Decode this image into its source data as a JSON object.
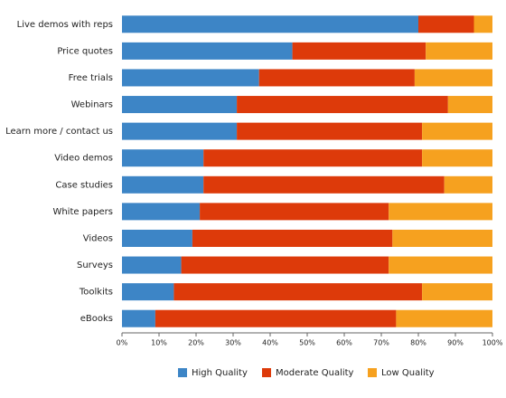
{
  "chart_data": {
    "type": "stacked-barh",
    "categories": [
      "Live demos with reps",
      "Price quotes",
      "Free trials",
      "Webinars",
      "Learn more / contact us",
      "Video demos",
      "Case studies",
      "White papers",
      "Videos",
      "Surveys",
      "Toolkits",
      "eBooks"
    ],
    "series": [
      {
        "name": "High Quality",
        "color": "#3d85c6",
        "values": [
          80,
          46,
          37,
          31,
          31,
          22,
          22,
          21,
          19,
          16,
          14,
          9
        ]
      },
      {
        "name": "Moderate Quality",
        "color": "#dd3a0a",
        "values": [
          15,
          36,
          42,
          57,
          50,
          59,
          65,
          51,
          54,
          56,
          67,
          65
        ]
      },
      {
        "name": "Low Quality",
        "color": "#f6a11f",
        "values": [
          5,
          18,
          21,
          12,
          19,
          19,
          13,
          28,
          27,
          28,
          19,
          26
        ]
      }
    ],
    "xlim": [
      0,
      100
    ],
    "xticks": [
      {
        "value": 0,
        "label": "0%"
      },
      {
        "value": 10,
        "label": "10%"
      },
      {
        "value": 20,
        "label": "20%"
      },
      {
        "value": 30,
        "label": "30%"
      },
      {
        "value": 40,
        "label": "40%"
      },
      {
        "value": 50,
        "label": "50%"
      },
      {
        "value": 60,
        "label": "60%"
      },
      {
        "value": 70,
        "label": "70%"
      },
      {
        "value": 80,
        "label": "80%"
      },
      {
        "value": 90,
        "label": "90%"
      },
      {
        "value": 100,
        "label": "100%"
      }
    ],
    "legend": "bottom"
  }
}
